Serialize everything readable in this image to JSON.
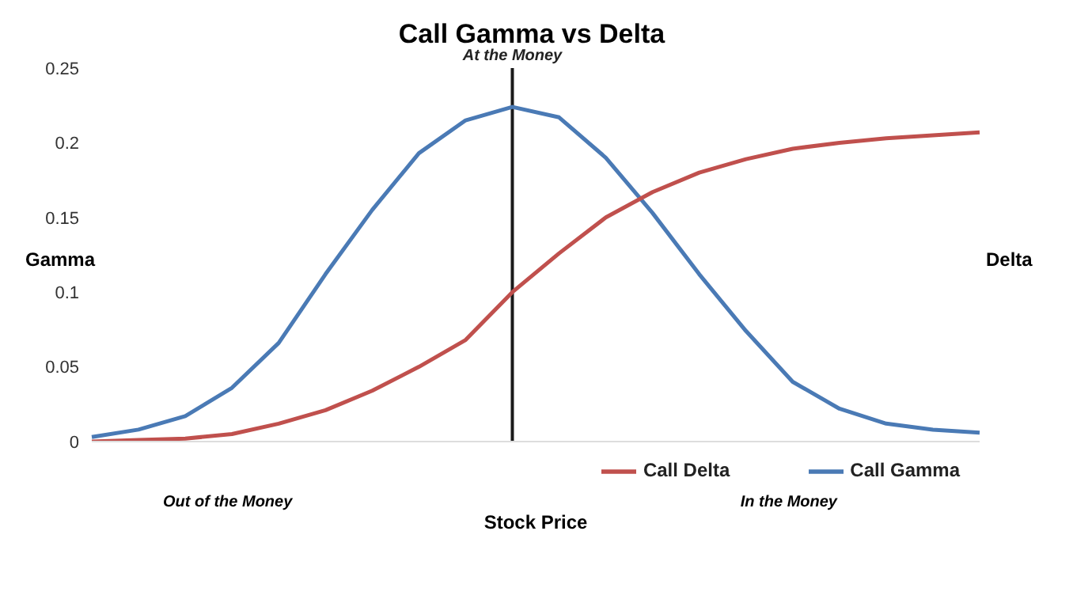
{
  "chart_data": {
    "type": "line",
    "title": "Call Gamma vs Delta",
    "xlabel": "Stock Price",
    "ylabel": "Gamma",
    "y2label": "Delta",
    "annotations": [
      "Out of the Money",
      "In the Money",
      "At the Money"
    ],
    "categories": [
      null,
      null,
      null,
      null,
      null,
      null,
      null,
      null,
      null,
      null,
      null,
      null,
      null,
      null,
      null,
      null,
      null,
      null,
      null,
      null
    ],
    "ylim": [
      0,
      0.25
    ],
    "yticks": [
      0,
      0.05,
      0.1,
      0.15,
      0.2,
      0.25
    ],
    "grid": false,
    "legend": "bottom",
    "marker": "none",
    "line_style": "solid",
    "series": [
      {
        "name": "Call Gamma",
        "color": "#4a7ab5",
        "values": [
          0.003,
          0.008,
          0.017,
          0.036,
          0.066,
          0.112,
          0.155,
          0.193,
          0.215,
          0.224,
          0.217,
          0.19,
          0.153,
          0.112,
          0.074,
          0.04,
          0.022,
          0.012,
          0.008,
          0.006
        ]
      },
      {
        "name": "Call Delta",
        "color": "#c0504d",
        "values": [
          0,
          0.001,
          0.002,
          0.005,
          0.012,
          0.021,
          0.034,
          0.05,
          0.068,
          0.1,
          0.126,
          0.15,
          0.167,
          0.18,
          0.189,
          0.196,
          0.2,
          0.203,
          0.205,
          0.207
        ]
      }
    ]
  }
}
